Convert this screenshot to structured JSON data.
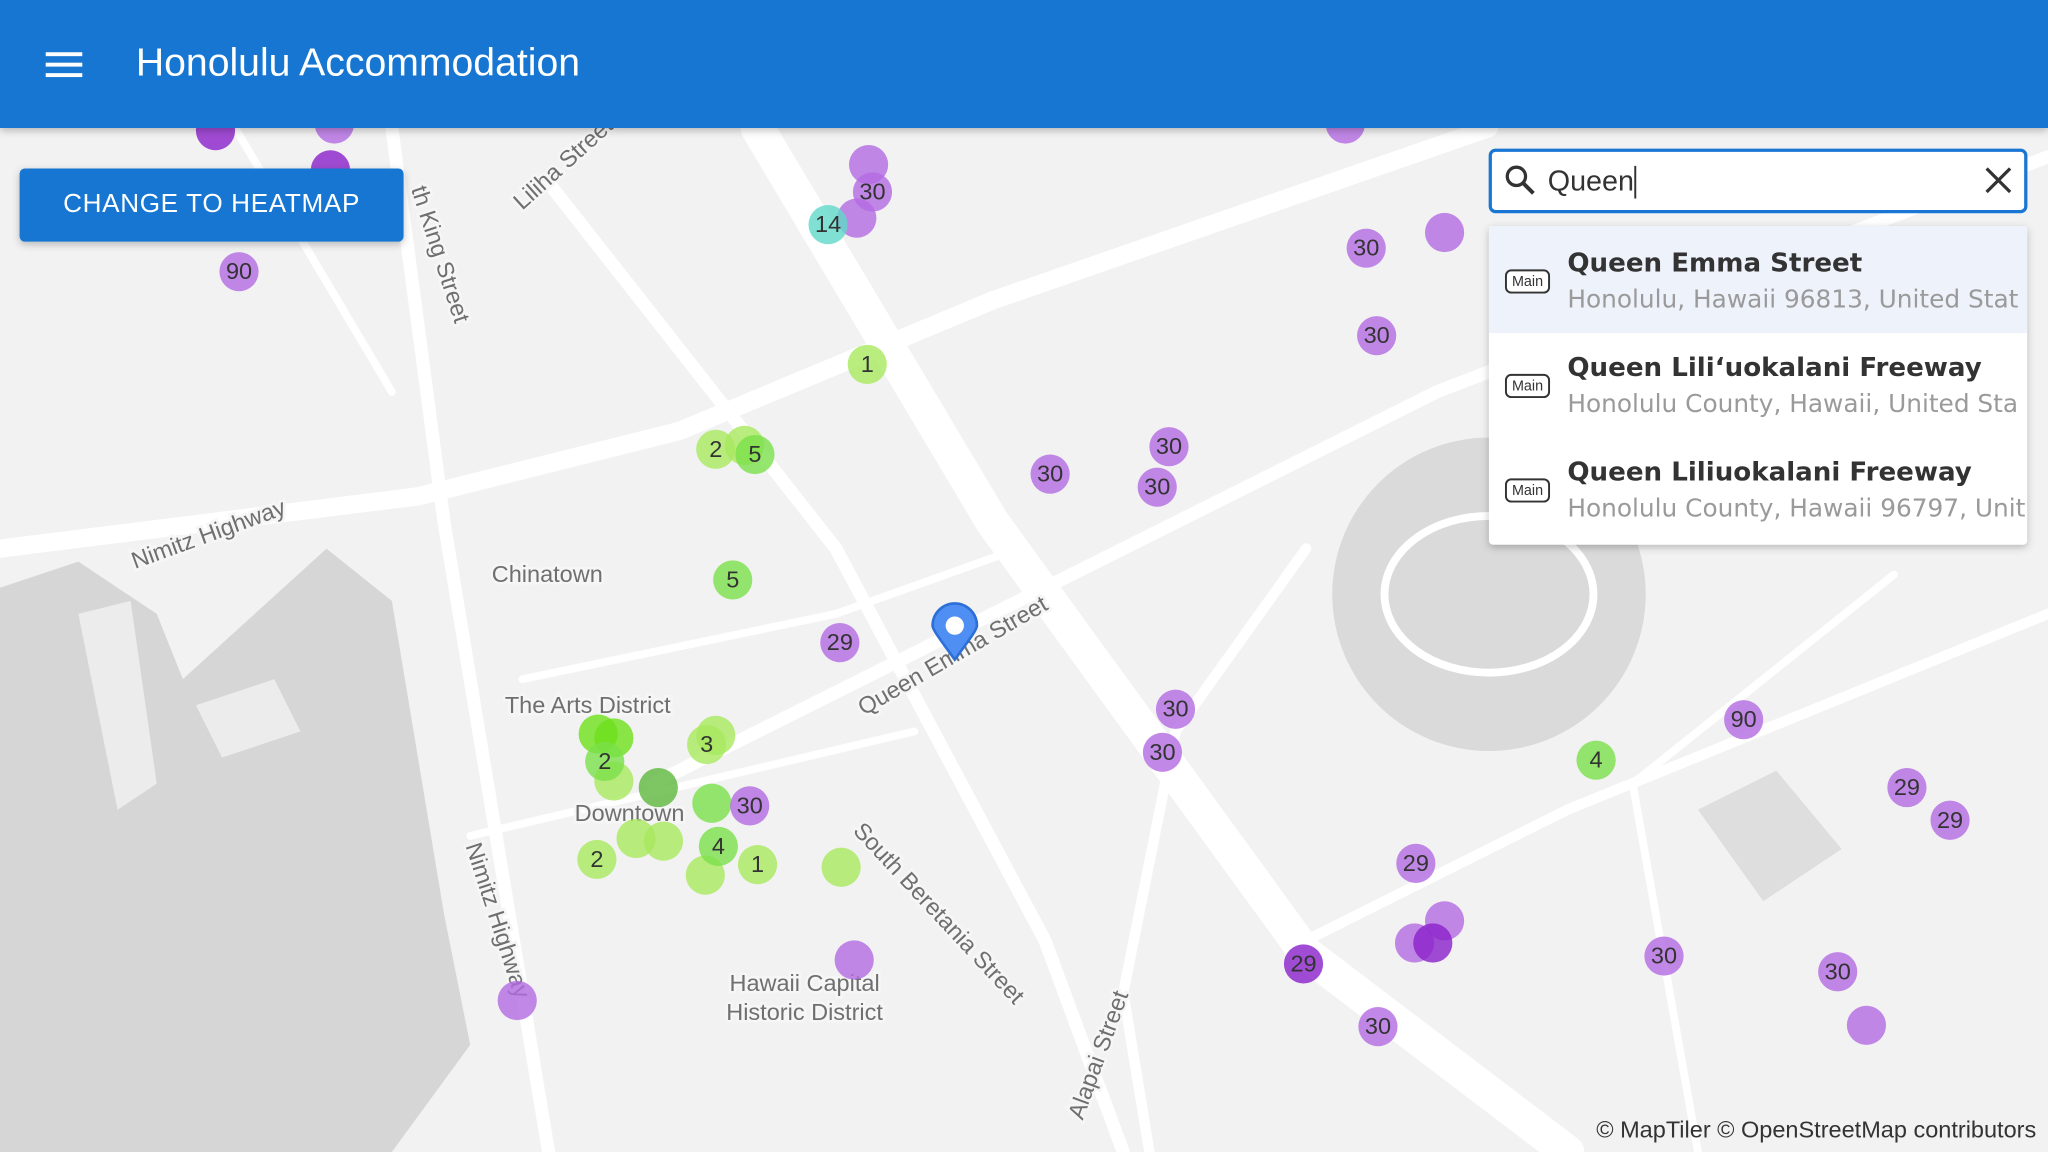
{
  "header": {
    "title": "Honolulu Accommodation"
  },
  "button": {
    "label": "CHANGE TO HEATMAP"
  },
  "search": {
    "query": "Queen",
    "suggestions": [
      {
        "tag": "Main",
        "name": "Queen Emma Street",
        "address": "Honolulu, Hawaii 96813, United Stat"
      },
      {
        "tag": "Main",
        "name": "Queen Liliʻuokalani Freeway",
        "address": "Honolulu County, Hawaii, United Sta"
      },
      {
        "tag": "Main",
        "name": "Queen Liliuokalani Freeway",
        "address": "Honolulu County, Hawaii 96797, Unit"
      }
    ]
  },
  "map": {
    "labels": [
      "Chinatown",
      "The Arts District",
      "Downtown",
      "Hawaii Capital",
      "Historic District",
      "Nimitz Highway",
      "Nimitz Highway",
      "Queen Emma Street",
      "South Beretania Street",
      "Alapai Street",
      "Liliha Street",
      "th King Street"
    ],
    "markers": [
      "90",
      "30",
      "14",
      "30",
      "30",
      "1",
      "2",
      "5",
      "30",
      "30",
      "30",
      "5",
      "29",
      "30",
      "30",
      "90",
      "4",
      "2",
      "3",
      "30",
      "4",
      "2",
      "1",
      "29",
      "29",
      "29",
      "29",
      "30",
      "30",
      "30"
    ],
    "attribution": "© MapTiler © OpenStreetMap contributors"
  }
}
